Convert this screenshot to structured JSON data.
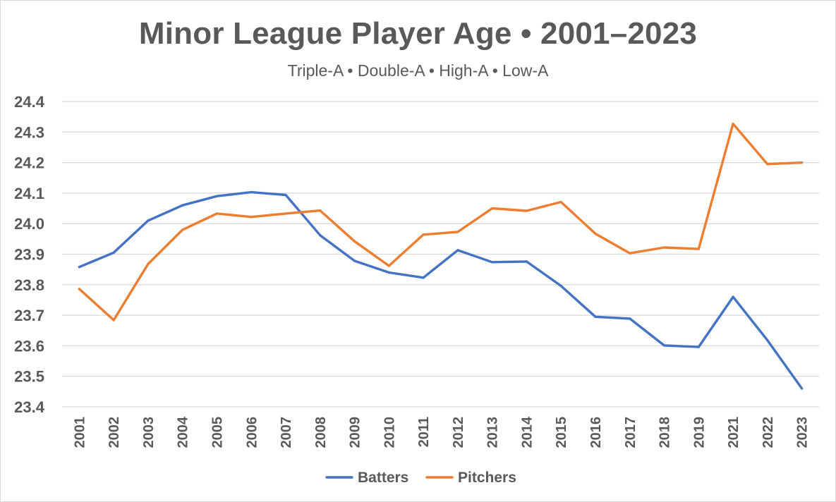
{
  "chart_data": {
    "type": "line",
    "title": "Minor League Player Age • 2001–2023",
    "subtitle": "Triple-A • Double-A • High-A • Low-A",
    "xlabel": "",
    "ylabel": "",
    "ylim": [
      23.4,
      24.4
    ],
    "y_ticks": [
      "24.4",
      "24.3",
      "24.2",
      "24.1",
      "24.0",
      "23.9",
      "23.8",
      "23.7",
      "23.6",
      "23.5",
      "23.4"
    ],
    "grid": true,
    "legend_position": "bottom",
    "categories": [
      "2001",
      "2002",
      "2003",
      "2004",
      "2005",
      "2006",
      "2007",
      "2008",
      "2009",
      "2010",
      "2011",
      "2012",
      "2013",
      "2014",
      "2015",
      "2016",
      "2017",
      "2018",
      "2019",
      "2021",
      "2022",
      "2023"
    ],
    "series": [
      {
        "name": "Batters",
        "color": "#4472C4",
        "values": [
          23.858,
          23.905,
          24.01,
          24.06,
          24.09,
          24.103,
          24.094,
          23.962,
          23.878,
          23.84,
          23.823,
          23.913,
          23.874,
          23.876,
          23.796,
          23.695,
          23.689,
          23.601,
          23.596,
          23.76,
          23.618,
          23.46
        ]
      },
      {
        "name": "Pitchers",
        "color": "#ED7D31",
        "values": [
          23.786,
          23.684,
          23.868,
          23.98,
          24.033,
          24.022,
          24.033,
          24.043,
          23.942,
          23.862,
          23.964,
          23.973,
          24.05,
          24.042,
          24.071,
          23.967,
          23.903,
          23.922,
          23.917,
          24.327,
          24.195,
          24.2
        ]
      }
    ]
  }
}
